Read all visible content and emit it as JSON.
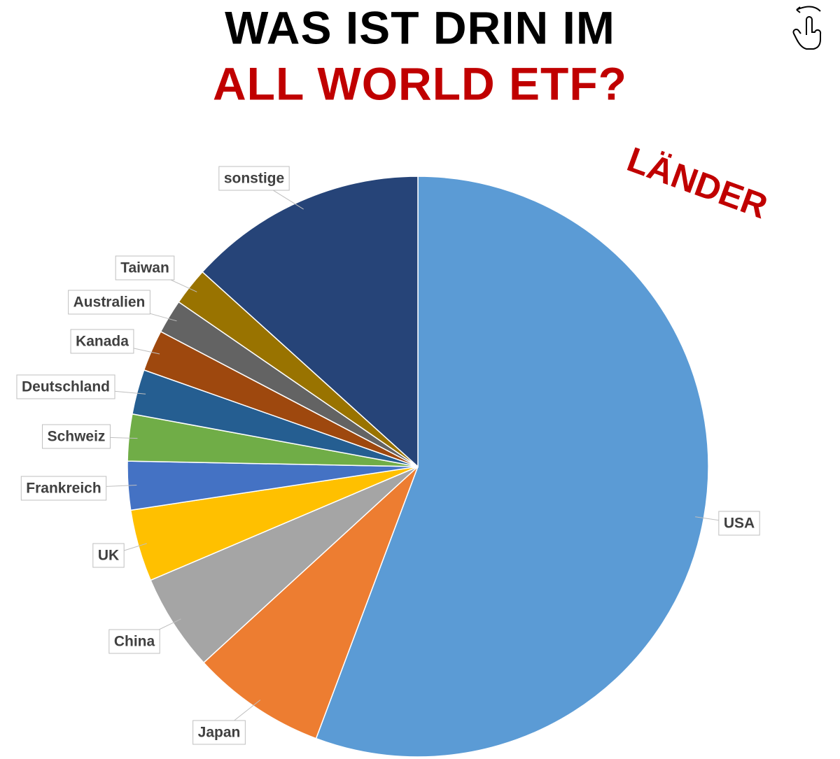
{
  "chart_data": {
    "type": "pie",
    "title": "WAS IST DRIN IM",
    "subtitle": "ALL WORLD ETF?",
    "annotation": "LÄNDER",
    "categories": [
      "USA",
      "Japan",
      "China",
      "UK",
      "Frankreich",
      "Schweiz",
      "Deutschland",
      "Kanada",
      "Australien",
      "Taiwan",
      "sonstige"
    ],
    "values": [
      55.7,
      7.5,
      5.4,
      4.0,
      2.7,
      2.6,
      2.5,
      2.3,
      1.9,
      2.1,
      13.3
    ],
    "colors": [
      "#5b9bd5",
      "#ed7d31",
      "#a5a5a5",
      "#ffc000",
      "#4472c4",
      "#70ad47",
      "#255e91",
      "#9e480e",
      "#636363",
      "#997300",
      "#264478"
    ]
  }
}
